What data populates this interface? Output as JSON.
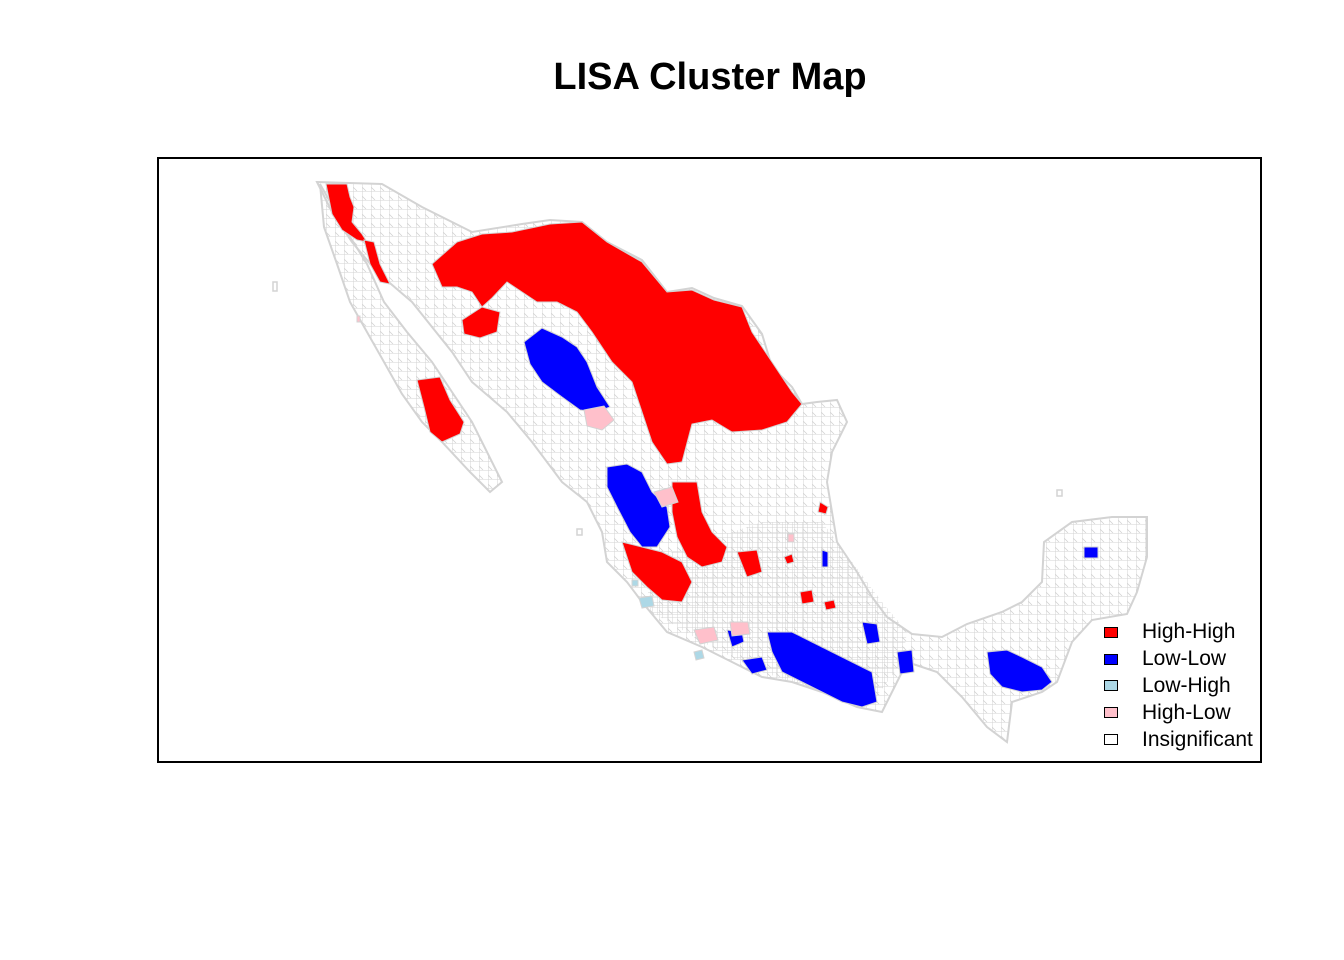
{
  "title": "LISA Cluster Map",
  "colors": {
    "high_high": "#ff0000",
    "low_low": "#0000ff",
    "low_high": "#add8e6",
    "high_low": "#ffc0cb",
    "insignificant": "#ffffff",
    "boundary": "#d3d3d3"
  },
  "legend": [
    {
      "label": "High-High",
      "color": "#ff0000"
    },
    {
      "label": "Low-Low",
      "color": "#0000ff"
    },
    {
      "label": "Low-High",
      "color": "#add8e6"
    },
    {
      "label": "High-Low",
      "color": "#ffc0cb"
    },
    {
      "label": "Insignificant",
      "color": "#ffffff"
    }
  ]
}
